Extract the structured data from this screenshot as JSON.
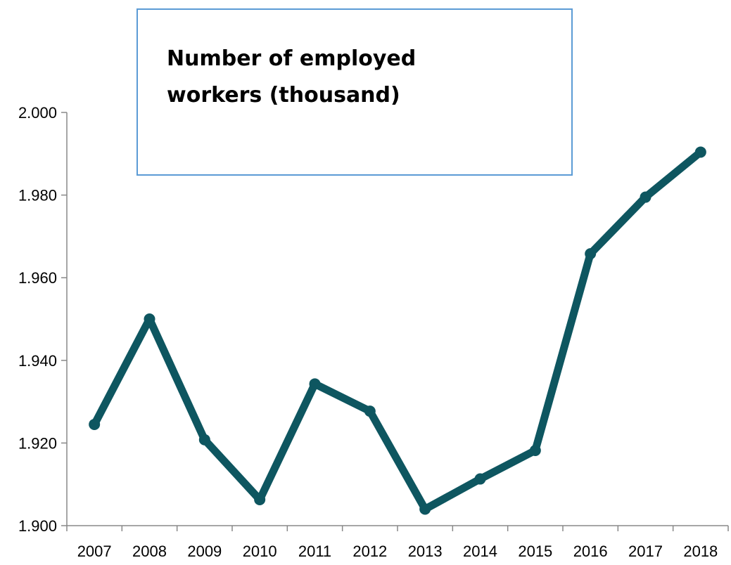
{
  "chart_data": {
    "type": "line",
    "title": "Number of employed workers (thousand)",
    "title_lines": [
      "Number of employed",
      "workers (thousand)"
    ],
    "xlabel": "",
    "ylabel": "",
    "categories": [
      "2007",
      "2008",
      "2009",
      "2010",
      "2011",
      "2012",
      "2013",
      "2014",
      "2015",
      "2016",
      "2017",
      "2018"
    ],
    "series": [
      {
        "values": [
          1924.5,
          1950.0,
          1920.8,
          1906.3,
          1934.3,
          1927.7,
          1904.0,
          1911.3,
          1918.2,
          1965.8,
          1979.5,
          1990.4
        ]
      }
    ],
    "ylim": [
      1900,
      2000
    ],
    "yticks": [
      1900,
      1920,
      1940,
      1960,
      1980,
      2000
    ],
    "ytick_labels": [
      "1.900",
      "1.920",
      "1.940",
      "1.960",
      "1.980",
      "2.000"
    ],
    "grid": false,
    "legend": "none",
    "colors": {
      "line": "#0e5660",
      "axis": "#888888",
      "title_box_border": "#5b9bd5"
    }
  }
}
